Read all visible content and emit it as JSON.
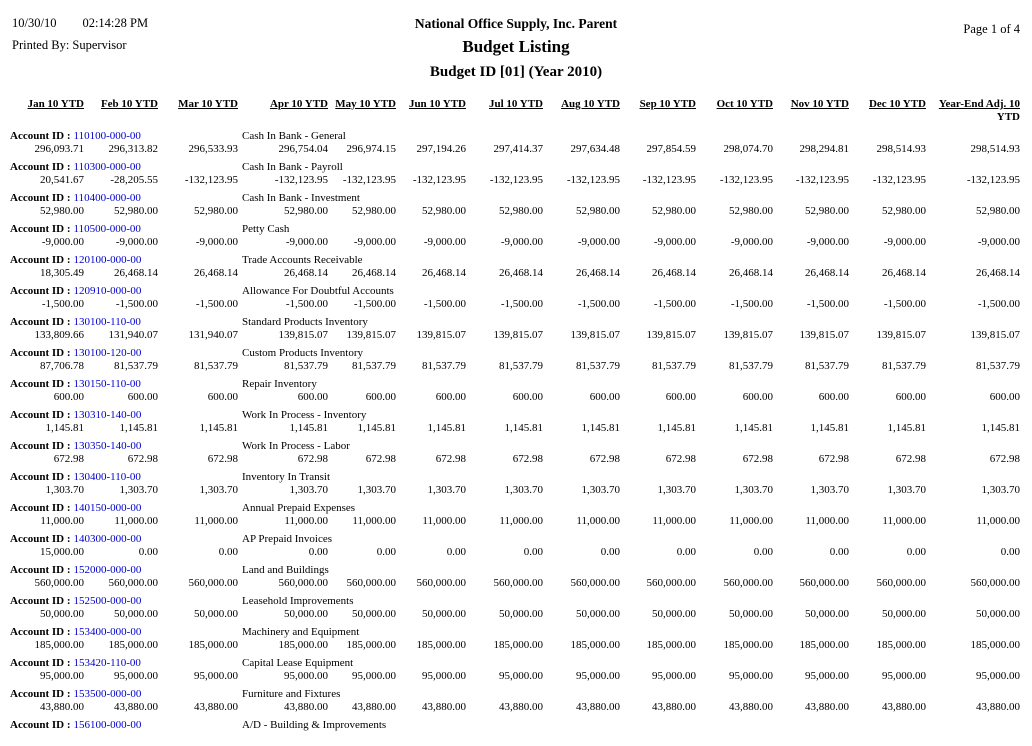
{
  "report": {
    "date": "10/30/10",
    "time": "02:14:28 PM",
    "printed_by": "Printed By: Supervisor",
    "company": "National Office Supply, Inc. Parent",
    "title": "Budget Listing",
    "subtitle": "Budget ID [01] (Year 2010)",
    "page": "Page 1 of 4"
  },
  "colors": {
    "account_id_link": "#0000cc",
    "text": "#000000",
    "background": "#ffffff"
  },
  "table": {
    "account_id_label": "Account ID :",
    "columns": [
      {
        "label": "Jan 10 YTD"
      },
      {
        "label": "Feb 10 YTD"
      },
      {
        "label": "Mar 10 YTD"
      },
      {
        "label": "Apr 10 YTD"
      },
      {
        "label": "May 10 YTD"
      },
      {
        "label": "Jun 10 YTD"
      },
      {
        "label": "Jul 10 YTD"
      },
      {
        "label": "Aug 10 YTD"
      },
      {
        "label": "Sep 10 YTD"
      },
      {
        "label": "Oct 10 YTD"
      },
      {
        "label": "Nov 10 YTD"
      },
      {
        "label": "Dec 10 YTD"
      },
      {
        "label": "Year-End Adj. 10",
        "sub": "YTD"
      }
    ],
    "accounts": [
      {
        "id": "110100-000-00",
        "name": "Cash In Bank - General",
        "values": [
          "296,093.71",
          "296,313.82",
          "296,533.93",
          "296,754.04",
          "296,974.15",
          "297,194.26",
          "297,414.37",
          "297,634.48",
          "297,854.59",
          "298,074.70",
          "298,294.81",
          "298,514.93",
          "298,514.93"
        ]
      },
      {
        "id": "110300-000-00",
        "name": "Cash In Bank - Payroll",
        "values": [
          "20,541.67",
          "-28,205.55",
          "-132,123.95",
          "-132,123.95",
          "-132,123.95",
          "-132,123.95",
          "-132,123.95",
          "-132,123.95",
          "-132,123.95",
          "-132,123.95",
          "-132,123.95",
          "-132,123.95",
          "-132,123.95"
        ]
      },
      {
        "id": "110400-000-00",
        "name": "Cash In Bank - Investment",
        "values": [
          "52,980.00",
          "52,980.00",
          "52,980.00",
          "52,980.00",
          "52,980.00",
          "52,980.00",
          "52,980.00",
          "52,980.00",
          "52,980.00",
          "52,980.00",
          "52,980.00",
          "52,980.00",
          "52,980.00"
        ]
      },
      {
        "id": "110500-000-00",
        "name": "Petty Cash",
        "values": [
          "-9,000.00",
          "-9,000.00",
          "-9,000.00",
          "-9,000.00",
          "-9,000.00",
          "-9,000.00",
          "-9,000.00",
          "-9,000.00",
          "-9,000.00",
          "-9,000.00",
          "-9,000.00",
          "-9,000.00",
          "-9,000.00"
        ]
      },
      {
        "id": "120100-000-00",
        "name": "Trade Accounts Receivable",
        "values": [
          "18,305.49",
          "26,468.14",
          "26,468.14",
          "26,468.14",
          "26,468.14",
          "26,468.14",
          "26,468.14",
          "26,468.14",
          "26,468.14",
          "26,468.14",
          "26,468.14",
          "26,468.14",
          "26,468.14"
        ]
      },
      {
        "id": "120910-000-00",
        "name": "Allowance For Doubtful Accounts",
        "values": [
          "-1,500.00",
          "-1,500.00",
          "-1,500.00",
          "-1,500.00",
          "-1,500.00",
          "-1,500.00",
          "-1,500.00",
          "-1,500.00",
          "-1,500.00",
          "-1,500.00",
          "-1,500.00",
          "-1,500.00",
          "-1,500.00"
        ]
      },
      {
        "id": "130100-110-00",
        "name": "Standard Products Inventory",
        "values": [
          "133,809.66",
          "131,940.07",
          "131,940.07",
          "139,815.07",
          "139,815.07",
          "139,815.07",
          "139,815.07",
          "139,815.07",
          "139,815.07",
          "139,815.07",
          "139,815.07",
          "139,815.07",
          "139,815.07"
        ]
      },
      {
        "id": "130100-120-00",
        "name": "Custom Products Inventory",
        "values": [
          "87,706.78",
          "81,537.79",
          "81,537.79",
          "81,537.79",
          "81,537.79",
          "81,537.79",
          "81,537.79",
          "81,537.79",
          "81,537.79",
          "81,537.79",
          "81,537.79",
          "81,537.79",
          "81,537.79"
        ]
      },
      {
        "id": "130150-110-00",
        "name": "Repair Inventory",
        "values": [
          "600.00",
          "600.00",
          "600.00",
          "600.00",
          "600.00",
          "600.00",
          "600.00",
          "600.00",
          "600.00",
          "600.00",
          "600.00",
          "600.00",
          "600.00"
        ]
      },
      {
        "id": "130310-140-00",
        "name": "Work In Process - Inventory",
        "values": [
          "1,145.81",
          "1,145.81",
          "1,145.81",
          "1,145.81",
          "1,145.81",
          "1,145.81",
          "1,145.81",
          "1,145.81",
          "1,145.81",
          "1,145.81",
          "1,145.81",
          "1,145.81",
          "1,145.81"
        ]
      },
      {
        "id": "130350-140-00",
        "name": "Work In Process - Labor",
        "values": [
          "672.98",
          "672.98",
          "672.98",
          "672.98",
          "672.98",
          "672.98",
          "672.98",
          "672.98",
          "672.98",
          "672.98",
          "672.98",
          "672.98",
          "672.98"
        ]
      },
      {
        "id": "130400-110-00",
        "name": "Inventory In Transit",
        "values": [
          "1,303.70",
          "1,303.70",
          "1,303.70",
          "1,303.70",
          "1,303.70",
          "1,303.70",
          "1,303.70",
          "1,303.70",
          "1,303.70",
          "1,303.70",
          "1,303.70",
          "1,303.70",
          "1,303.70"
        ]
      },
      {
        "id": "140150-000-00",
        "name": "Annual Prepaid Expenses",
        "values": [
          "11,000.00",
          "11,000.00",
          "11,000.00",
          "11,000.00",
          "11,000.00",
          "11,000.00",
          "11,000.00",
          "11,000.00",
          "11,000.00",
          "11,000.00",
          "11,000.00",
          "11,000.00",
          "11,000.00"
        ]
      },
      {
        "id": "140300-000-00",
        "name": "AP Prepaid Invoices",
        "values": [
          "15,000.00",
          "0.00",
          "0.00",
          "0.00",
          "0.00",
          "0.00",
          "0.00",
          "0.00",
          "0.00",
          "0.00",
          "0.00",
          "0.00",
          "0.00"
        ]
      },
      {
        "id": "152000-000-00",
        "name": "Land and Buildings",
        "values": [
          "560,000.00",
          "560,000.00",
          "560,000.00",
          "560,000.00",
          "560,000.00",
          "560,000.00",
          "560,000.00",
          "560,000.00",
          "560,000.00",
          "560,000.00",
          "560,000.00",
          "560,000.00",
          "560,000.00"
        ]
      },
      {
        "id": "152500-000-00",
        "name": "Leasehold Improvements",
        "values": [
          "50,000.00",
          "50,000.00",
          "50,000.00",
          "50,000.00",
          "50,000.00",
          "50,000.00",
          "50,000.00",
          "50,000.00",
          "50,000.00",
          "50,000.00",
          "50,000.00",
          "50,000.00",
          "50,000.00"
        ]
      },
      {
        "id": "153400-000-00",
        "name": "Machinery and Equipment",
        "values": [
          "185,000.00",
          "185,000.00",
          "185,000.00",
          "185,000.00",
          "185,000.00",
          "185,000.00",
          "185,000.00",
          "185,000.00",
          "185,000.00",
          "185,000.00",
          "185,000.00",
          "185,000.00",
          "185,000.00"
        ]
      },
      {
        "id": "153420-110-00",
        "name": "Capital Lease Equipment",
        "values": [
          "95,000.00",
          "95,000.00",
          "95,000.00",
          "95,000.00",
          "95,000.00",
          "95,000.00",
          "95,000.00",
          "95,000.00",
          "95,000.00",
          "95,000.00",
          "95,000.00",
          "95,000.00",
          "95,000.00"
        ]
      },
      {
        "id": "153500-000-00",
        "name": "Furniture and Fixtures",
        "values": [
          "43,880.00",
          "43,880.00",
          "43,880.00",
          "43,880.00",
          "43,880.00",
          "43,880.00",
          "43,880.00",
          "43,880.00",
          "43,880.00",
          "43,880.00",
          "43,880.00",
          "43,880.00",
          "43,880.00"
        ]
      },
      {
        "id": "156100-000-00",
        "name": "A/D - Building & Improvements",
        "values": []
      }
    ]
  }
}
